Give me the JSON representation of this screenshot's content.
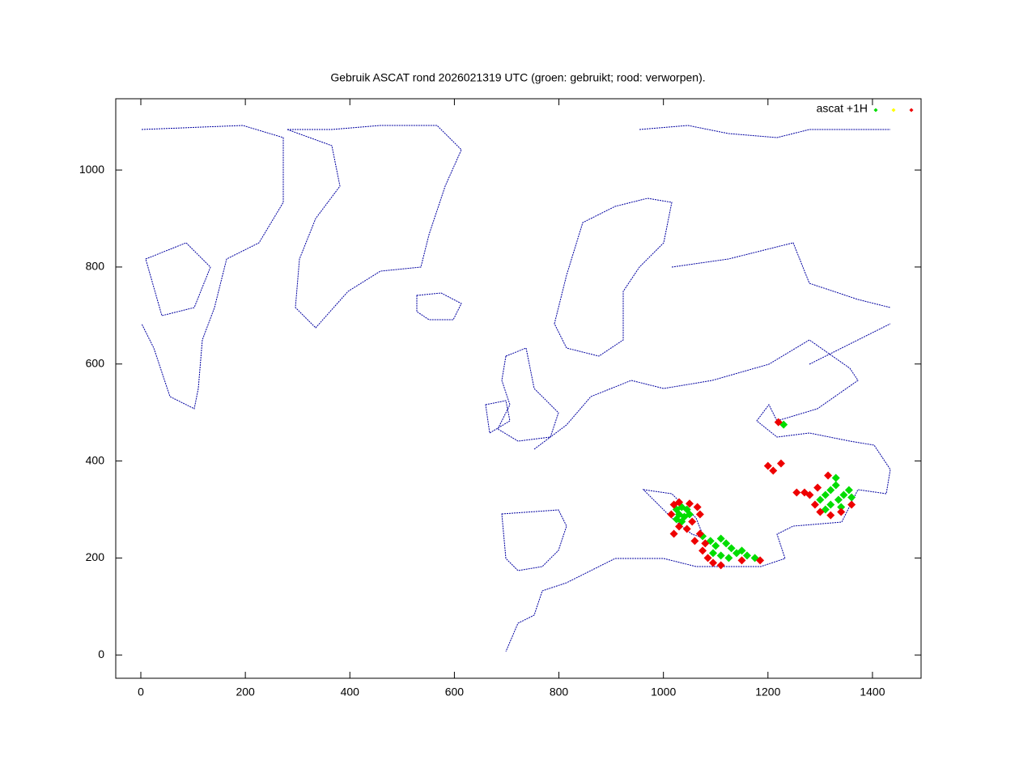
{
  "chart_data": {
    "type": "scatter",
    "title": "Gebruik ASCAT rond 2026021319 UTC (groen: gebruikt; rood: verworpen).",
    "xlim": [
      -48,
      1493
    ],
    "ylim": [
      -48,
      1147
    ],
    "xticks": [
      0,
      200,
      400,
      600,
      800,
      1000,
      1200,
      1400
    ],
    "yticks": [
      0,
      200,
      400,
      600,
      800,
      1000
    ],
    "legend": "top-right",
    "series": [
      {
        "name": "ascat +1H",
        "color": "#00dd00",
        "x": [
          1025,
          1035,
          1045,
          1030,
          1040,
          1050,
          1035,
          1025,
          1075,
          1090,
          1100,
          1110,
          1120,
          1130,
          1140,
          1150,
          1160,
          1095,
          1110,
          1125,
          1175,
          1300,
          1310,
          1320,
          1330,
          1320,
          1335,
          1345,
          1355,
          1310,
          1330,
          1340,
          1360,
          1230
        ],
        "values": [
          300,
          305,
          300,
          290,
          285,
          290,
          275,
          280,
          245,
          235,
          225,
          240,
          230,
          220,
          210,
          215,
          205,
          210,
          205,
          200,
          200,
          320,
          330,
          340,
          350,
          310,
          320,
          330,
          340,
          300,
          365,
          305,
          325,
          475
        ]
      },
      {
        "color": "#ffff00",
        "x": [],
        "values": []
      },
      {
        "color": "#ee0000",
        "x": [
          1020,
          1015,
          1030,
          1050,
          1065,
          1070,
          1055,
          1030,
          1020,
          1045,
          1070,
          1060,
          1075,
          1085,
          1095,
          1110,
          1150,
          1185,
          1080,
          1220,
          1200,
          1210,
          1280,
          1290,
          1300,
          1320,
          1340,
          1360,
          1315,
          1295,
          1270,
          1255,
          1225
        ],
        "values": [
          310,
          290,
          315,
          312,
          305,
          290,
          275,
          265,
          250,
          260,
          250,
          235,
          215,
          200,
          190,
          185,
          195,
          195,
          230,
          480,
          390,
          380,
          330,
          310,
          295,
          288,
          295,
          310,
          370,
          345,
          335,
          335,
          395
        ]
      }
    ]
  }
}
